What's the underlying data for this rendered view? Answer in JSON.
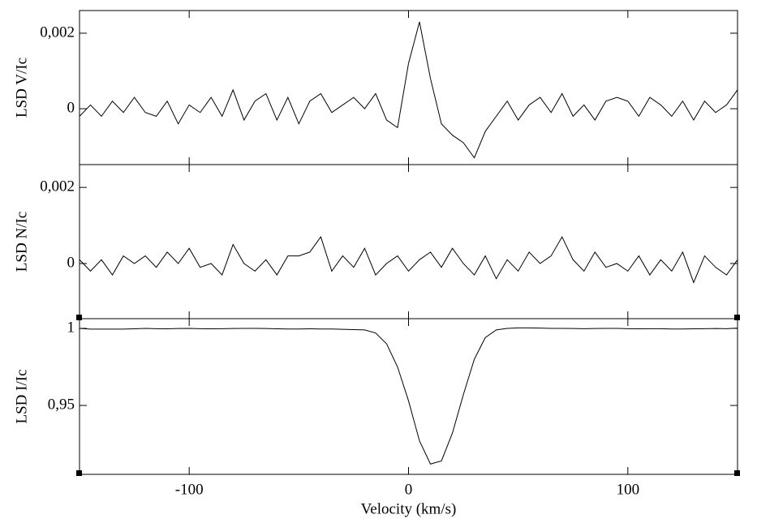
{
  "chart_data": [
    {
      "type": "line",
      "ylabel": "LSD V/Ic",
      "color": "#000000",
      "xlim": [
        -150,
        150
      ],
      "ylim": [
        -0.00148,
        0.0026
      ],
      "yticks": [
        {
          "value": 0.002,
          "label": "0,002"
        },
        0
      ],
      "x": [
        -150,
        -145,
        -140,
        -135,
        -130,
        -125,
        -120,
        -115,
        -110,
        -105,
        -100,
        -95,
        -90,
        -85,
        -80,
        -75,
        -70,
        -65,
        -60,
        -55,
        -50,
        -45,
        -40,
        -35,
        -30,
        -25,
        -20,
        -15,
        -10,
        -5,
        0,
        5,
        10,
        15,
        20,
        25,
        30,
        35,
        40,
        45,
        50,
        55,
        60,
        65,
        70,
        75,
        80,
        85,
        90,
        95,
        100,
        105,
        110,
        115,
        120,
        125,
        130,
        135,
        140,
        145,
        150
      ],
      "values": [
        -0.0002,
        0.0001,
        -0.0002,
        0.0002,
        -0.0001,
        0.0003,
        -0.0001,
        -0.0002,
        0.0002,
        -0.0004,
        0.0001,
        -0.0001,
        0.0003,
        -0.0002,
        0.0005,
        -0.0003,
        0.0002,
        0.0004,
        -0.0003,
        0.0003,
        -0.0004,
        0.0002,
        0.0004,
        -0.0001,
        0.0001,
        0.0003,
        0.0,
        0.0004,
        -0.0003,
        -0.0005,
        0.0012,
        0.0023,
        0.0008,
        -0.0004,
        -0.0007,
        -0.0009,
        -0.0013,
        -0.0006,
        -0.0002,
        0.0002,
        -0.0003,
        0.0001,
        0.0003,
        -0.0001,
        0.0004,
        -0.0002,
        0.0001,
        -0.0003,
        0.0002,
        0.0003,
        0.0002,
        -0.0002,
        0.0003,
        0.0001,
        -0.0002,
        0.0002,
        -0.0003,
        0.0002,
        -0.0001,
        0.0001,
        0.0005
      ]
    },
    {
      "type": "line",
      "ylabel": "LSD N/Ic",
      "color": "#000000",
      "xlim": [
        -150,
        150
      ],
      "ylim": [
        -0.00145,
        0.0026
      ],
      "yticks": [
        {
          "value": 0.002,
          "label": "0,002"
        },
        0
      ],
      "x": [
        -150,
        -145,
        -140,
        -135,
        -130,
        -125,
        -120,
        -115,
        -110,
        -105,
        -100,
        -95,
        -90,
        -85,
        -80,
        -75,
        -70,
        -65,
        -60,
        -55,
        -50,
        -45,
        -40,
        -35,
        -30,
        -25,
        -20,
        -15,
        -10,
        -5,
        0,
        5,
        10,
        15,
        20,
        25,
        30,
        35,
        40,
        45,
        50,
        55,
        60,
        65,
        70,
        75,
        80,
        85,
        90,
        95,
        100,
        105,
        110,
        115,
        120,
        125,
        130,
        135,
        140,
        145,
        150
      ],
      "values": [
        0.0001,
        -0.0002,
        0.0001,
        -0.0003,
        0.0002,
        0.0,
        0.0002,
        -0.0001,
        0.0003,
        0.0,
        0.0004,
        -0.0001,
        0.0,
        -0.0003,
        0.0005,
        0.0,
        -0.0002,
        0.0001,
        -0.0003,
        0.0002,
        0.0002,
        0.0003,
        0.0007,
        -0.0002,
        0.0002,
        -0.0001,
        0.0004,
        -0.0003,
        0.0,
        0.0002,
        -0.0002,
        0.0001,
        0.0003,
        -0.0001,
        0.0004,
        0.0,
        -0.0003,
        0.0002,
        -0.0004,
        0.0001,
        -0.0002,
        0.0003,
        0.0,
        0.0002,
        0.0007,
        0.0001,
        -0.0002,
        0.0003,
        -0.0001,
        0.0,
        -0.0002,
        0.0002,
        -0.0003,
        0.0001,
        -0.0002,
        0.0003,
        -0.0005,
        0.0002,
        -0.0001,
        -0.0003,
        0.0001
      ]
    },
    {
      "type": "line",
      "ylabel": "LSD I/Ic",
      "xlabel": "Velocity (km/s)",
      "color": "#000000",
      "xlim": [
        -150,
        150
      ],
      "ylim": [
        0.9053,
        1.0063
      ],
      "yticks": [
        1,
        {
          "value": 0.95,
          "label": "0,95"
        }
      ],
      "xticks": [
        -100,
        0,
        100
      ],
      "x": [
        -150,
        -145,
        -140,
        -135,
        -130,
        -125,
        -120,
        -115,
        -110,
        -105,
        -100,
        -95,
        -90,
        -85,
        -80,
        -75,
        -70,
        -65,
        -60,
        -55,
        -50,
        -45,
        -40,
        -35,
        -30,
        -25,
        -20,
        -15,
        -10,
        -5,
        0,
        5,
        10,
        15,
        20,
        25,
        30,
        35,
        40,
        45,
        50,
        55,
        60,
        65,
        70,
        75,
        80,
        85,
        90,
        95,
        100,
        105,
        110,
        115,
        120,
        125,
        130,
        135,
        140,
        145,
        150
      ],
      "values": [
        1.0,
        0.9995,
        0.9995,
        0.9995,
        0.9995,
        0.9997,
        1.0,
        0.9998,
        0.9997,
        0.9999,
        1.0,
        0.9998,
        0.9997,
        0.9998,
        0.9999,
        1.0,
        1.0,
        0.9999,
        0.9997,
        0.9996,
        0.9996,
        0.9997,
        0.9996,
        0.9996,
        0.9994,
        0.9992,
        0.999,
        0.997,
        0.99,
        0.975,
        0.953,
        0.927,
        0.912,
        0.914,
        0.932,
        0.957,
        0.98,
        0.994,
        0.999,
        1.0,
        1.0003,
        1.0003,
        1.0002,
        1.0,
        1.0,
        0.9999,
        0.9998,
        0.9999,
        1.0,
        1.0,
        0.9998,
        0.9997,
        0.9998,
        0.9998,
        0.9996,
        0.9996,
        0.9997,
        0.9998,
        0.9999,
        0.9998,
        1.0002
      ]
    }
  ]
}
